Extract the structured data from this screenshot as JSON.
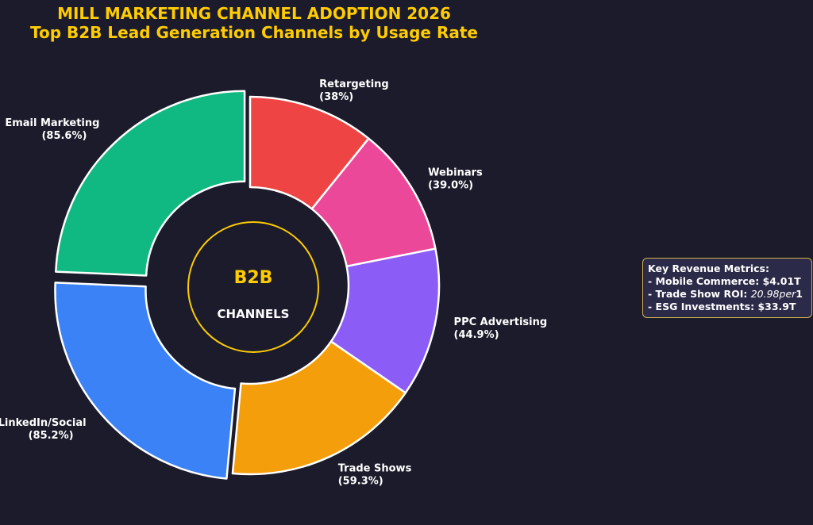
{
  "chart_data": {
    "type": "pie",
    "variant": "donut",
    "title": "MILL MARKETING CHANNEL ADOPTION 2026",
    "subtitle": "Top B2B Lead Generation Channels by Usage Rate",
    "categories": [
      "Retargeting",
      "Webinars",
      "PPC Advertising",
      "Trade Shows",
      "LinkedIn/Social",
      "Email Marketing"
    ],
    "values": [
      38,
      39.0,
      44.9,
      59.3,
      85.2,
      85.6
    ],
    "value_labels": [
      "(38%)",
      "(39.0%)",
      "(44.9%)",
      "(59.3%)",
      "(85.2%)",
      "(85.6%)"
    ],
    "colors": [
      "#ef4444",
      "#ec4899",
      "#8b5cf6",
      "#f59e0b",
      "#3b82f6",
      "#10b981"
    ],
    "exploded": [
      false,
      false,
      false,
      false,
      true,
      true
    ],
    "center_text": {
      "line1": "B2B",
      "line2": "CHANNELS"
    },
    "legend": "none"
  },
  "metrics_box": {
    "title": "Key Revenue Metrics:",
    "row1": "- Mobile Commerce: $4.01T",
    "row2_prefix": "- Trade Show ROI: ",
    "row2_italic": "20.98per",
    "row2_suffix": "1",
    "row3": "- ESG Investments: $33.9T"
  },
  "colors": {
    "background": "#1b1b2b",
    "title": "#ffcc00",
    "center_ring": "#ffcc00",
    "label_text": "#ffffff"
  }
}
